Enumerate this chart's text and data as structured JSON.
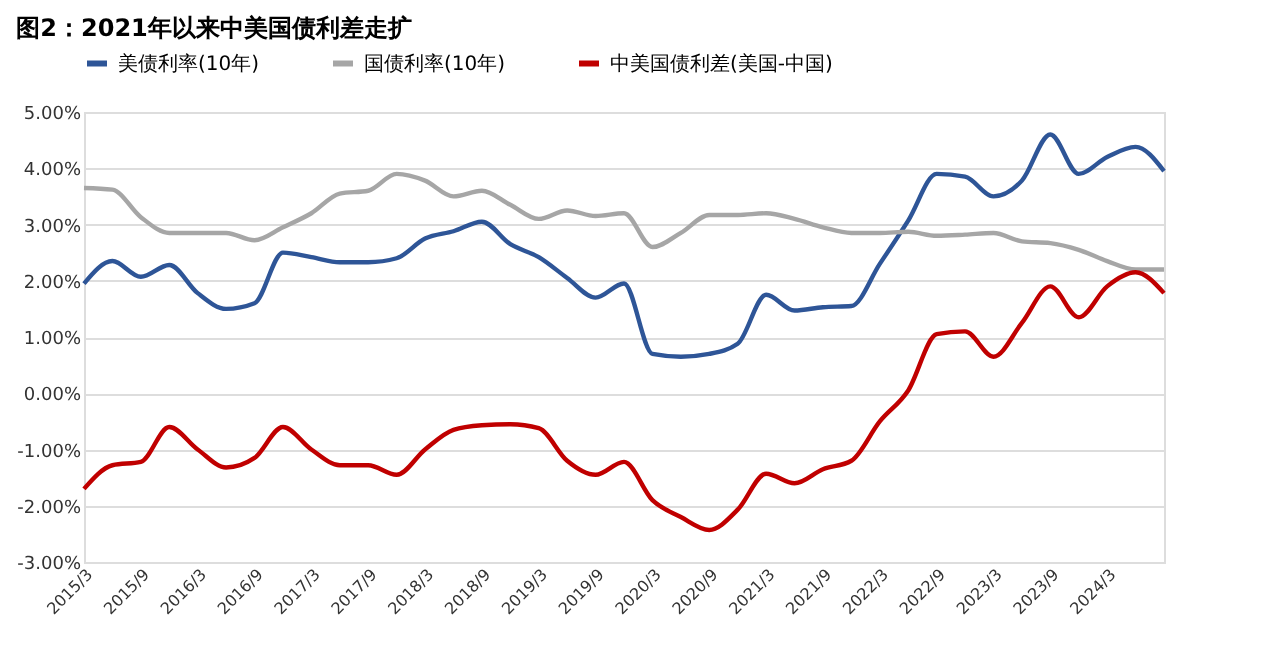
{
  "chart_data": {
    "type": "line",
    "title": "图2：2021年以来中美国债利差走扩",
    "categories": [
      "2015/3",
      null,
      "2015/9",
      null,
      "2016/3",
      null,
      "2016/9",
      null,
      "2017/3",
      null,
      "2017/9",
      null,
      "2018/3",
      null,
      "2018/9",
      null,
      "2019/3",
      null,
      "2019/9",
      null,
      "2020/3",
      null,
      "2020/9",
      null,
      "2021/3",
      null,
      "2021/9",
      null,
      "2022/3",
      null,
      "2022/9",
      null,
      "2023/3",
      null,
      "2023/9",
      null,
      "2024/3",
      null,
      null
    ],
    "series": [
      {
        "name": "美债利率(10年)",
        "color": "#2e5597",
        "values": [
          1.95,
          2.35,
          2.07,
          2.28,
          1.78,
          1.5,
          1.6,
          2.5,
          2.42,
          2.33,
          2.33,
          2.4,
          2.75,
          2.88,
          3.05,
          2.65,
          2.42,
          2.05,
          1.7,
          1.95,
          0.7,
          0.65,
          0.7,
          0.88,
          1.75,
          1.47,
          1.53,
          1.55,
          2.3,
          3.07,
          3.9,
          3.85,
          3.5,
          3.78,
          4.6,
          3.9,
          4.2,
          4.38,
          3.95
        ]
      },
      {
        "name": "国债利率(10年)",
        "color": "#a6a6a6",
        "values": [
          3.65,
          3.62,
          3.13,
          2.85,
          2.85,
          2.85,
          2.72,
          2.95,
          3.2,
          3.55,
          3.6,
          3.9,
          3.78,
          3.5,
          3.6,
          3.35,
          3.1,
          3.25,
          3.15,
          3.2,
          2.6,
          2.85,
          3.17,
          3.17,
          3.2,
          3.1,
          2.95,
          2.85,
          2.85,
          2.87,
          2.8,
          2.82,
          2.85,
          2.7,
          2.67,
          2.55,
          2.35,
          2.2,
          2.2
        ]
      },
      {
        "name": "中美国债利差(美国-中国)",
        "color": "#c00000",
        "values": [
          -1.7,
          -1.28,
          -1.22,
          -0.6,
          -1.0,
          -1.32,
          -1.15,
          -0.6,
          -1.0,
          -1.28,
          -1.28,
          -1.45,
          -1.0,
          -0.65,
          -0.57,
          -0.55,
          -0.62,
          -1.2,
          -1.45,
          -1.22,
          -1.9,
          -2.2,
          -2.43,
          -2.07,
          -1.43,
          -1.6,
          -1.35,
          -1.2,
          -0.5,
          0.05,
          1.05,
          1.1,
          0.65,
          1.25,
          1.9,
          1.35,
          1.9,
          2.15,
          1.78
        ]
      }
    ],
    "ylim": [
      -3,
      5
    ],
    "yticks": [
      {
        "value": -3,
        "label": "-3.00%"
      },
      {
        "value": -2,
        "label": "-2.00%"
      },
      {
        "value": -1,
        "label": "-1.00%"
      },
      {
        "value": 0,
        "label": "0.00%"
      },
      {
        "value": 1,
        "label": "1.00%"
      },
      {
        "value": 2,
        "label": "2.00%"
      },
      {
        "value": 3,
        "label": "3.00%"
      },
      {
        "value": 4,
        "label": "4.00%"
      },
      {
        "value": 5,
        "label": "5.00%"
      }
    ],
    "grid": "y",
    "legend": "top",
    "marker": "none",
    "line_style": "solid"
  }
}
